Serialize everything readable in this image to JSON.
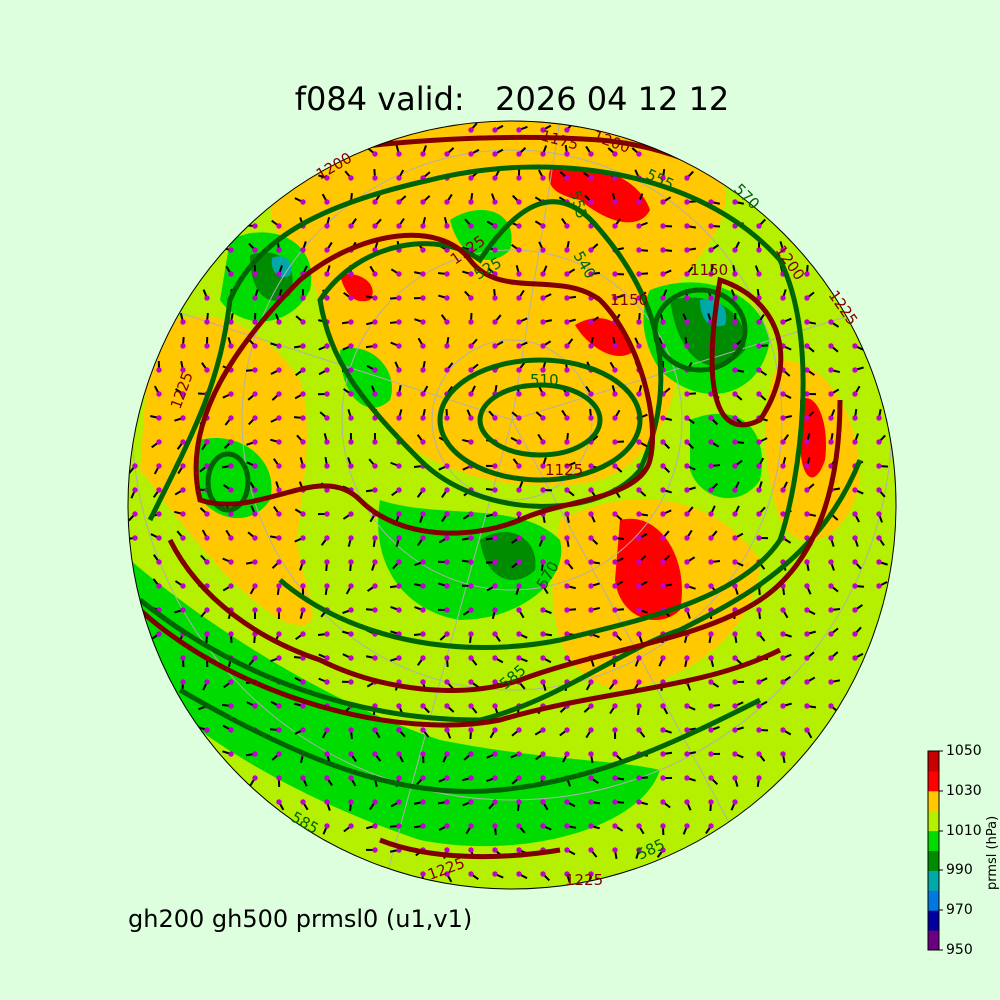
{
  "title": "f084 valid:   2026 04 12 12",
  "subtitle": "gh200 gh500 prmsl0 (u1,v1)",
  "colorbar": {
    "label": "prmsl (hPa)",
    "ticks": [
      "1050",
      "1030",
      "1010",
      "990",
      "970",
      "950"
    ],
    "range": [
      950,
      1050
    ],
    "colors": [
      "#6a0080",
      "#0000a0",
      "#0078e0",
      "#00a8a8",
      "#008c00",
      "#00dc00",
      "#b4f000",
      "#ffc800",
      "#ff0000",
      "#c80000"
    ]
  },
  "colors": {
    "background": "#ddffdd",
    "gh200_contour": "#800000",
    "gh500_contour": "#006400",
    "wind_dots": "#c000d0"
  },
  "contour_labels": {
    "gh200": [
      "1200",
      "1175",
      "1150",
      "1125",
      "1225",
      "1150",
      "1200",
      "1225",
      "1125",
      "1225",
      "1225",
      "1200"
    ],
    "gh500": [
      "525",
      "540",
      "555",
      "570",
      "585",
      "570",
      "585",
      "510",
      "585",
      "555"
    ]
  }
}
